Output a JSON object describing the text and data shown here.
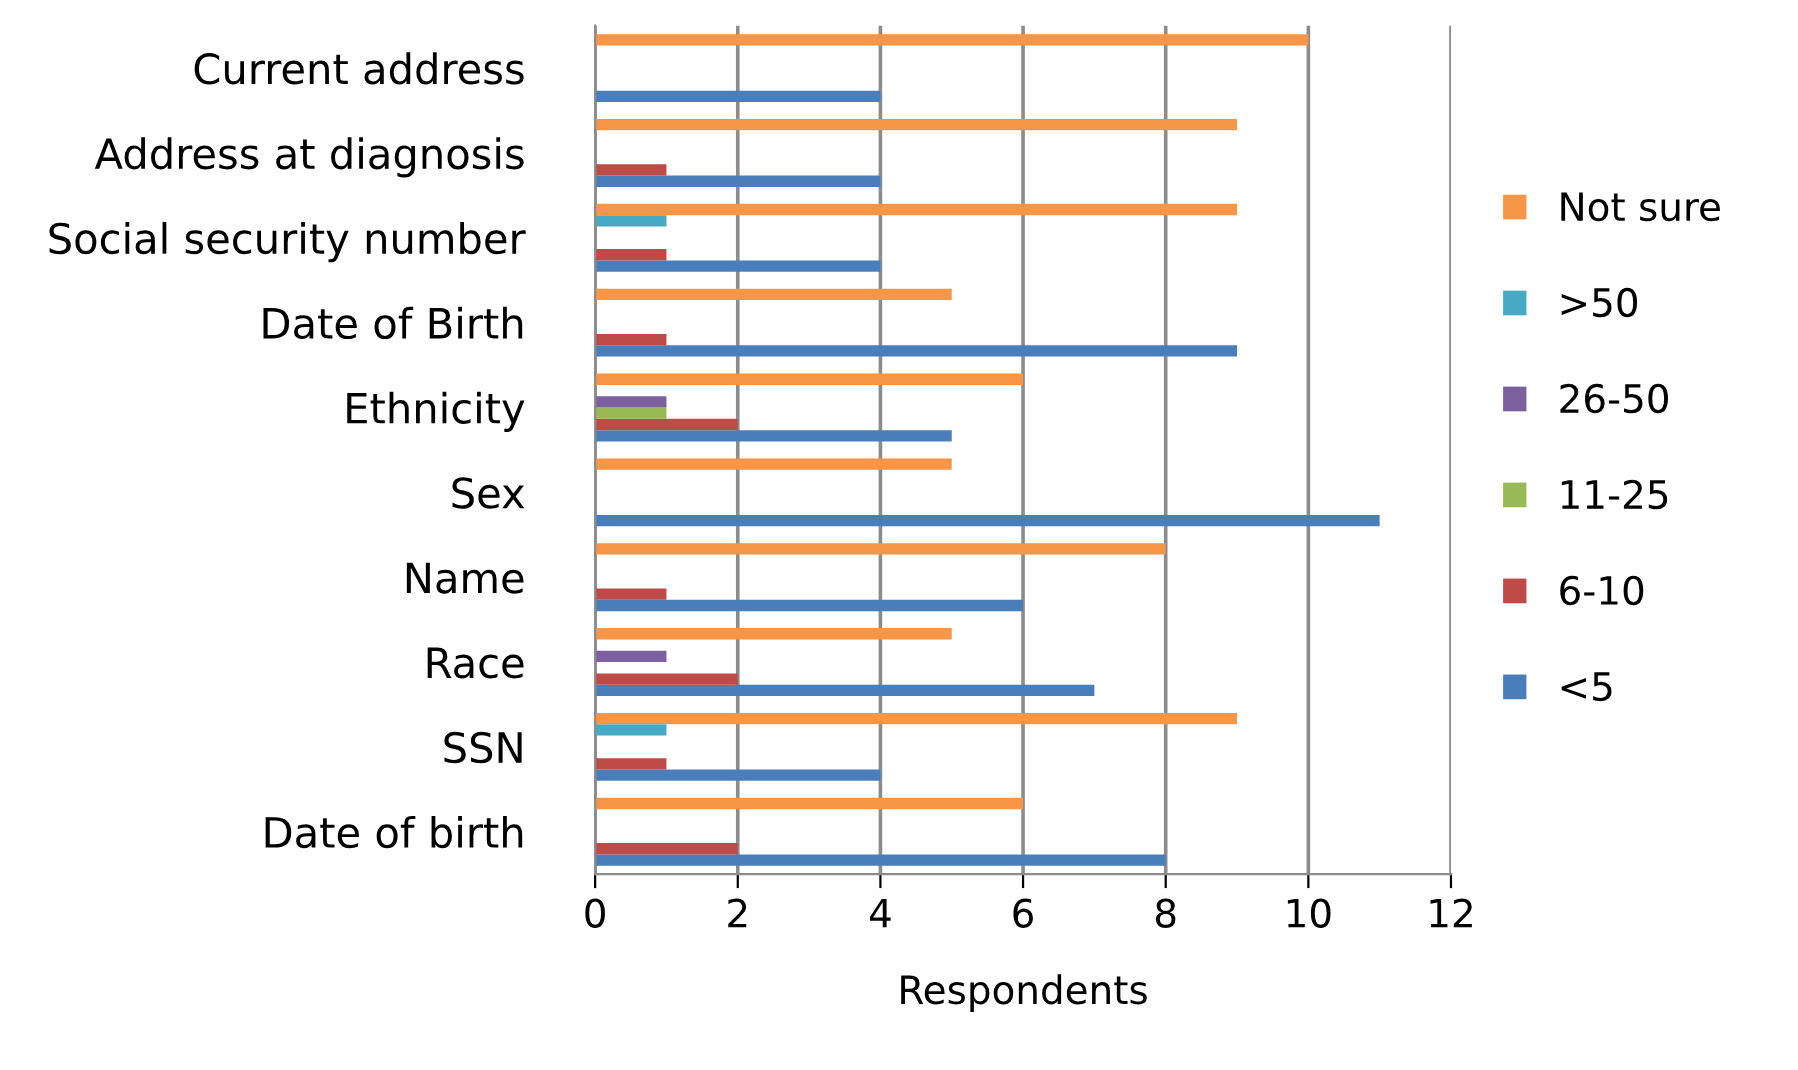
{
  "chart_data": {
    "type": "bar",
    "orientation": "horizontal",
    "xlabel": "Respondents",
    "categories": [
      "Current address",
      "Address at diagnosis",
      "Social security number",
      "Date of Birth",
      "Ethnicity",
      "Sex",
      "Name",
      "Race",
      "SSN",
      "Date of birth"
    ],
    "series": [
      {
        "name": "<5",
        "color": "#4a7ebb",
        "values": [
          4,
          4,
          4,
          9,
          5,
          11,
          6,
          7,
          4,
          8
        ]
      },
      {
        "name": "6-10",
        "color": "#be4b48",
        "values": [
          0,
          1,
          1,
          1,
          2,
          0,
          1,
          2,
          1,
          2
        ]
      },
      {
        "name": "11-25",
        "color": "#98b954",
        "values": [
          0,
          0,
          0,
          0,
          1,
          0,
          0,
          0,
          0,
          0
        ]
      },
      {
        "name": "26-50",
        "color": "#7d60a0",
        "values": [
          0,
          0,
          0,
          0,
          1,
          0,
          0,
          1,
          0,
          0
        ]
      },
      {
        "name": ">50",
        "color": "#46aac5",
        "values": [
          0,
          0,
          1,
          0,
          0,
          0,
          0,
          0,
          1,
          0
        ]
      },
      {
        "name": "Not sure",
        "color": "#f79646",
        "values": [
          10,
          9,
          9,
          5,
          6,
          5,
          8,
          5,
          9,
          6
        ]
      }
    ],
    "xlim": [
      0,
      12
    ],
    "xticks": [
      0,
      2,
      4,
      6,
      8,
      10,
      12
    ],
    "grid": "x",
    "legend": "right"
  }
}
